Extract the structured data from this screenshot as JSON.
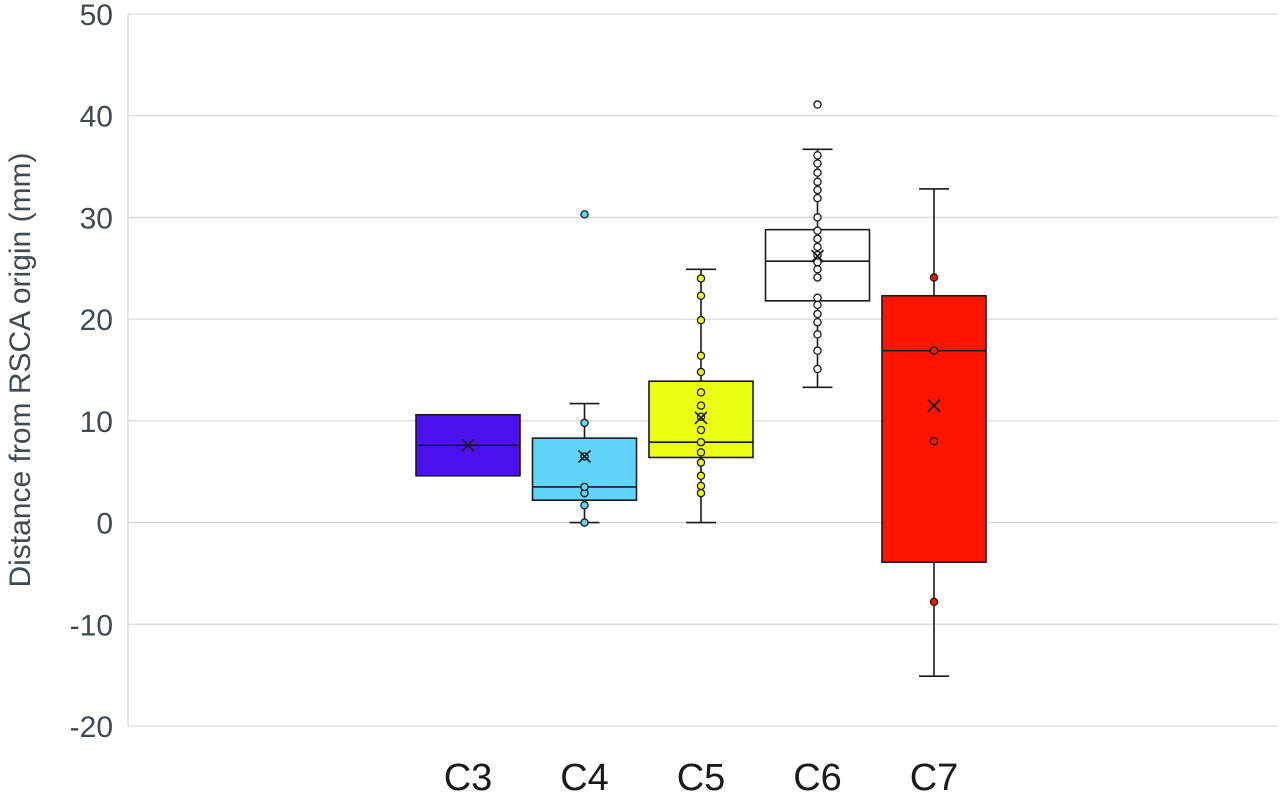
{
  "chart_data": {
    "type": "box",
    "ylabel": "Distance from RSCA origin (mm)",
    "xlabel": "",
    "ylim": [
      -20,
      50
    ],
    "yticks": [
      -20,
      -10,
      0,
      10,
      20,
      30,
      40,
      50
    ],
    "grid": true,
    "categories": [
      "C3",
      "C4",
      "C5",
      "C6",
      "C7"
    ],
    "boxes": [
      {
        "category": "C3",
        "color": "#4e10ef",
        "q1": 4.6,
        "median": 7.6,
        "q3": 10.6,
        "whisker_low": null,
        "whisker_high": null,
        "mean": 7.6,
        "points": [],
        "outliers": []
      },
      {
        "category": "C4",
        "color": "#63d4f9",
        "q1": 2.2,
        "median": 3.5,
        "q3": 8.3,
        "whisker_low": 0,
        "whisker_high": 11.7,
        "mean": 6.5,
        "points": [
          0,
          1.7,
          2.9,
          3.5,
          6.5,
          9.8
        ],
        "outliers": [
          30.3
        ]
      },
      {
        "category": "C5",
        "color": "#eaff13",
        "q1": 6.4,
        "median": 7.9,
        "q3": 13.9,
        "whisker_low": 0,
        "whisker_high": 24.9,
        "mean": 10.3,
        "points": [
          2.9,
          3.6,
          4.6,
          5.9,
          6.9,
          7.9,
          9.1,
          10.4,
          11.5,
          12.8,
          14.8,
          16.4,
          19.9,
          22.3,
          24.0
        ],
        "outliers": []
      },
      {
        "category": "C6",
        "color": "#ffffff",
        "q1": 21.8,
        "median": 25.7,
        "q3": 28.8,
        "whisker_low": 13.3,
        "whisker_high": 36.7,
        "mean": 26.2,
        "points": [
          15.1,
          16.9,
          18.5,
          19.7,
          20.5,
          21.4,
          22.1,
          24.1,
          24.9,
          25.6,
          26.3,
          27.1,
          27.9,
          28.7,
          30.0,
          31.9,
          32.7,
          33.5,
          34.4,
          35.3,
          36.1
        ],
        "outliers": [
          41.1
        ]
      },
      {
        "category": "C7",
        "color": "#ff1400",
        "q1": -3.9,
        "median": 16.9,
        "q3": 22.3,
        "whisker_low": -15.1,
        "whisker_high": 32.8,
        "mean": 11.5,
        "points": [
          -7.8,
          8.0,
          16.9,
          24.1
        ],
        "outliers": []
      }
    ]
  }
}
